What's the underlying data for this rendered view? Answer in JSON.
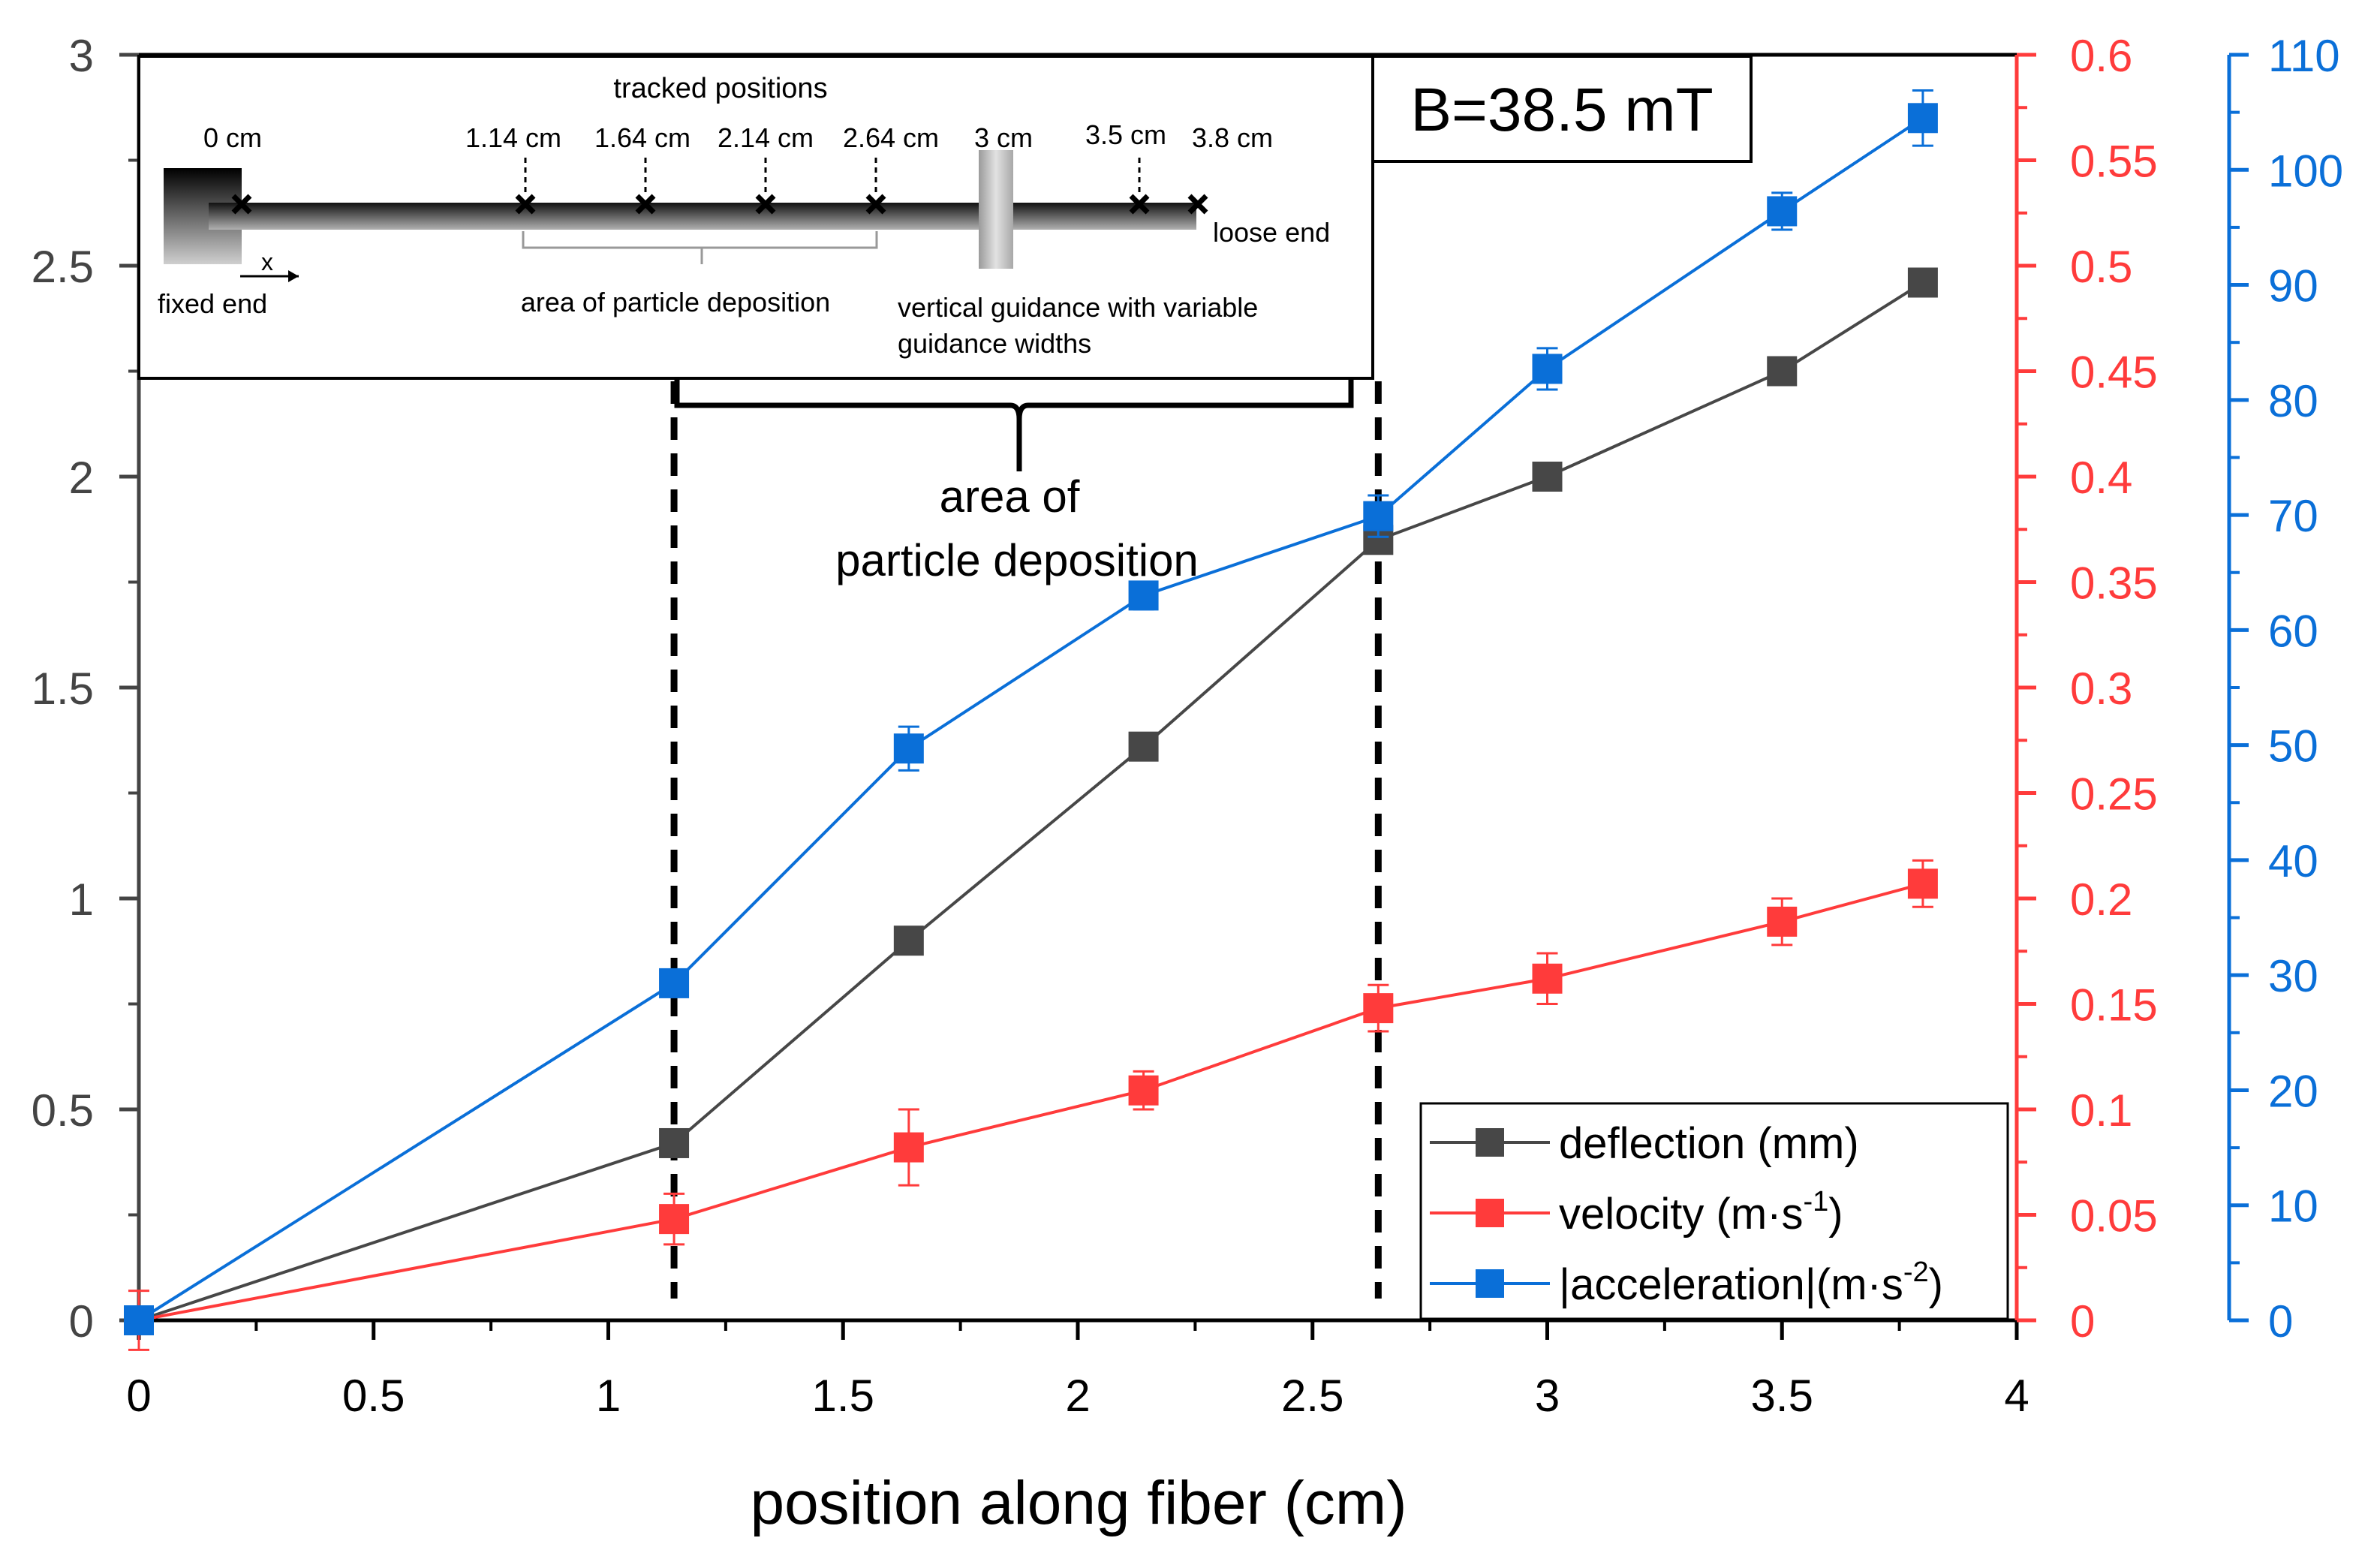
{
  "chart_data": {
    "type": "line",
    "xlabel": "position along fiber (cm)",
    "xlim": [
      0,
      4
    ],
    "x_ticks": [
      "0",
      "0.5",
      "1",
      "1.5",
      "2",
      "2.5",
      "3",
      "3.5",
      "4"
    ],
    "x": [
      0,
      1.14,
      1.64,
      2.14,
      2.64,
      3.0,
      3.5,
      3.8
    ],
    "axes": {
      "left": {
        "lim": [
          0,
          3
        ],
        "ticks": [
          "0",
          "0.5",
          "1",
          "1.5",
          "2",
          "2.5",
          "3"
        ],
        "color": "#444444"
      },
      "right1": {
        "lim": [
          0,
          0.6
        ],
        "ticks": [
          "0",
          "0.05",
          "0.1",
          "0.15",
          "0.2",
          "0.25",
          "0.3",
          "0.35",
          "0.4",
          "0.45",
          "0.5",
          "0.55",
          "0.6"
        ],
        "color": "#ff3b3b"
      },
      "right2": {
        "lim": [
          0,
          110
        ],
        "ticks": [
          "0",
          "10",
          "20",
          "30",
          "40",
          "50",
          "60",
          "70",
          "80",
          "90",
          "100",
          "110"
        ],
        "color": "#0a6fd8"
      }
    },
    "series": [
      {
        "name": "deflection (mm)",
        "axis": "left",
        "color": "#474747",
        "values": [
          0,
          0.42,
          0.9,
          1.36,
          1.85,
          2.0,
          2.25,
          2.46
        ],
        "err": [
          0,
          0,
          0,
          0,
          0,
          0,
          0,
          0
        ]
      },
      {
        "name": "velocity (m·s-1)",
        "axis": "right1",
        "color": "#ff3b3b",
        "values": [
          0,
          0.048,
          0.082,
          0.109,
          0.148,
          0.162,
          0.189,
          0.207
        ],
        "err": [
          0.014,
          0.012,
          0.018,
          0.009,
          0.011,
          0.012,
          0.011,
          0.011
        ]
      },
      {
        "name": "|acceleration|(m·s-2)",
        "axis": "right2",
        "color": "#0a6fd8",
        "values": [
          0,
          29.3,
          49.7,
          63.0,
          69.9,
          82.7,
          96.4,
          104.5
        ],
        "err": [
          0,
          0.8,
          1.9,
          1.2,
          1.8,
          1.8,
          1.6,
          2.4
        ]
      }
    ],
    "vlines_x": [
      1.14,
      2.64
    ],
    "annotation": {
      "line1": "area of",
      "line2": "particle deposition"
    },
    "field_label": "B=38.5 mT",
    "legend": {
      "placement": "bottom-right",
      "entries": [
        {
          "text": "deflection (mm)"
        },
        {
          "text": "velocity (m·s",
          "sup": "-1",
          "tail": ")"
        },
        {
          "text": "|acceleration|(m·s",
          "sup": "-2",
          "tail": ")"
        }
      ]
    },
    "inset": {
      "title": "tracked positions",
      "positions": [
        "0 cm",
        "1.14 cm",
        "1.64 cm",
        "2.14 cm",
        "2.64 cm",
        "3 cm",
        "3.5 cm",
        "3.8 cm"
      ],
      "fixed_end": "fixed end",
      "loose_end": "loose end",
      "x_axis": "x",
      "deposition": "area of particle deposition",
      "guidance_line1": "vertical guidance with variable",
      "guidance_line2": "guidance widths"
    }
  }
}
